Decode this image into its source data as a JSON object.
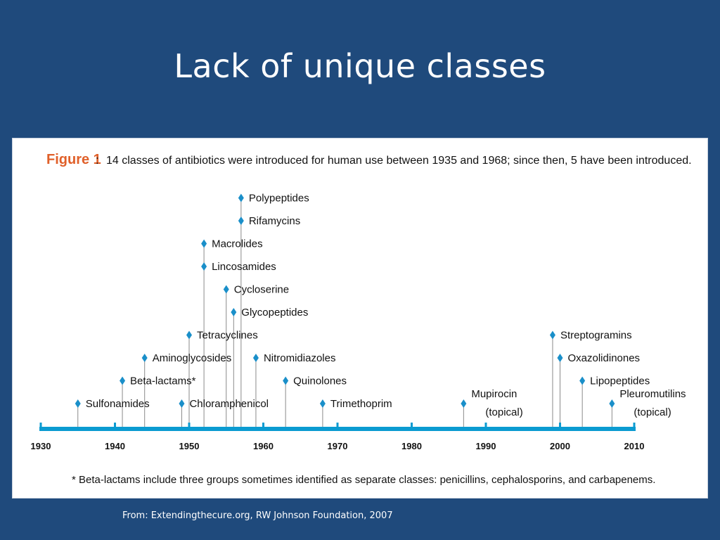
{
  "slide": {
    "title": "Lack of unique classes",
    "source": "From: Extendingthecure.org, RW Johnson Foundation, 2007"
  },
  "figure": {
    "label": "Figure 1",
    "label_separator": ":",
    "caption": "14 classes of antibiotics were introduced for human use between 1935 and 1968; since then, 5 have been introduced.",
    "footnote": "*  Beta-lactams include three groups sometimes identified as separate classes: penicillins, cephalosporins, and carbapenems.",
    "axis": {
      "start": 1930,
      "end": 2010,
      "ticks": [
        1930,
        1940,
        1950,
        1960,
        1970,
        1980,
        1990,
        2000,
        2010
      ]
    },
    "colors": {
      "label": "#e0602a",
      "timeline": "#0b9bd1",
      "marker": "#1a8fc9",
      "stem": "#8a8a8a",
      "text": "#111111"
    },
    "events": [
      {
        "name": "Sulfonamides",
        "year": 1935,
        "level": 1
      },
      {
        "name": "Beta-lactams*",
        "year": 1941,
        "level": 2
      },
      {
        "name": "Aminoglycosides",
        "year": 1944,
        "level": 3
      },
      {
        "name": "Chloramphenicol",
        "year": 1949,
        "level": 1
      },
      {
        "name": "Tetracyclines",
        "year": 1950,
        "level": 4
      },
      {
        "name": "Macrolides",
        "year": 1952,
        "level": 8
      },
      {
        "name": "Lincosamides",
        "year": 1952,
        "level": 7
      },
      {
        "name": "Cycloserine",
        "year": 1955,
        "level": 6
      },
      {
        "name": "Glycopeptides",
        "year": 1956,
        "level": 5
      },
      {
        "name": "Polypeptides",
        "year": 1957,
        "level": 10
      },
      {
        "name": "Rifamycins",
        "year": 1957,
        "level": 9
      },
      {
        "name": "Nitromidiazoles",
        "year": 1959,
        "level": 3
      },
      {
        "name": "Quinolones",
        "year": 1963,
        "level": 2
      },
      {
        "name": "Trimethoprim",
        "year": 1968,
        "level": 1
      },
      {
        "name": "Mupirocin",
        "note": "(topical)",
        "year": 1987,
        "level": 1
      },
      {
        "name": "Streptogramins",
        "year": 1999,
        "level": 4
      },
      {
        "name": "Oxazolidinones",
        "year": 2000,
        "level": 3
      },
      {
        "name": "Lipopeptides",
        "year": 2003,
        "level": 2
      },
      {
        "name": "Pleuromutilins",
        "note": "(topical)",
        "year": 2007,
        "level": 1
      }
    ]
  }
}
